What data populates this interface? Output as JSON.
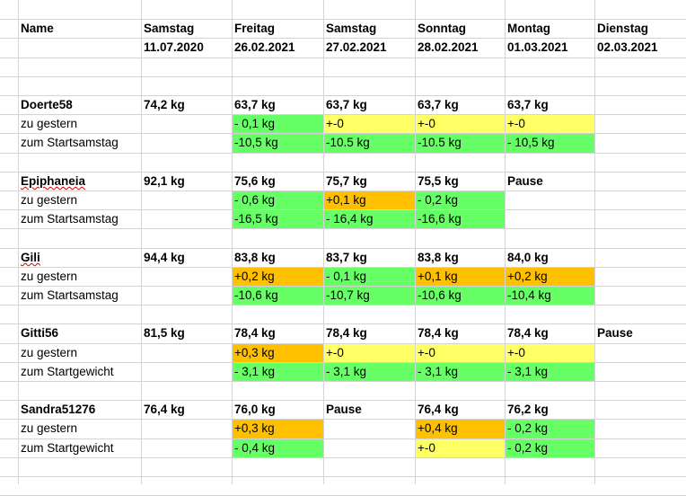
{
  "header": {
    "name": "Name",
    "columns": [
      {
        "day": "Samstag",
        "date": "11.07.2020"
      },
      {
        "day": "Freitag",
        "date": "26.02.2021"
      },
      {
        "day": "Samstag",
        "date": "27.02.2021"
      },
      {
        "day": "Sonntag",
        "date": "28.02.2021"
      },
      {
        "day": "Montag",
        "date": "01.03.2021"
      },
      {
        "day": "Dienstag",
        "date": "02.03.2021"
      }
    ]
  },
  "colors": {
    "green": "#66ff66",
    "yellow": "#ffff66",
    "orange": "#ffc000",
    "grid": "#d4d4d4"
  },
  "people": [
    {
      "name": "Doerte58",
      "start": "74,2 kg",
      "weights": [
        "63,7 kg",
        "63,7 kg",
        "63,7 kg",
        "63,7 kg",
        ""
      ],
      "row1_label": "zu gestern",
      "row1": [
        {
          "t": "- 0,1 kg",
          "c": "g"
        },
        {
          "t": "+-0",
          "c": "y"
        },
        {
          "t": "+-0",
          "c": "y"
        },
        {
          "t": "+-0",
          "c": "y"
        },
        {
          "t": "",
          "c": ""
        }
      ],
      "row2_label": "zum Startsamstag",
      "row2": [
        {
          "t": "-10,5 kg",
          "c": "g"
        },
        {
          "t": "-10.5 kg",
          "c": "g"
        },
        {
          "t": "-10.5 kg",
          "c": "g"
        },
        {
          "t": "- 10,5 kg",
          "c": "g"
        },
        {
          "t": "",
          "c": ""
        }
      ]
    },
    {
      "name": "Epiphaneia",
      "start": "92,1 kg",
      "weights": [
        "75,6 kg",
        "75,7 kg",
        "75,5 kg",
        "Pause",
        ""
      ],
      "row1_label": "zu gestern",
      "row1": [
        {
          "t": "- 0,6 kg",
          "c": "g"
        },
        {
          "t": "+0,1 kg",
          "c": "o"
        },
        {
          "t": "- 0,2 kg",
          "c": "g"
        },
        {
          "t": "",
          "c": ""
        },
        {
          "t": "",
          "c": ""
        }
      ],
      "row2_label": "zum Startsamstag",
      "row2": [
        {
          "t": "-16,5 kg",
          "c": "g"
        },
        {
          "t": "- 16,4 kg",
          "c": "g"
        },
        {
          "t": "-16,6 kg",
          "c": "g"
        },
        {
          "t": "",
          "c": ""
        },
        {
          "t": "",
          "c": ""
        }
      ]
    },
    {
      "name": "Gili",
      "start": "94,4 kg",
      "weights": [
        "83,8 kg",
        "83,7 kg",
        "83,8 kg",
        "84,0 kg",
        ""
      ],
      "row1_label": "zu gestern",
      "row1": [
        {
          "t": "+0,2 kg",
          "c": "o"
        },
        {
          "t": "- 0,1 kg",
          "c": "g"
        },
        {
          "t": "+0,1 kg",
          "c": "o"
        },
        {
          "t": "+0,2 kg",
          "c": "o"
        },
        {
          "t": "",
          "c": ""
        }
      ],
      "row2_label": "zum Startsamstag",
      "row2": [
        {
          "t": "-10,6 kg",
          "c": "g"
        },
        {
          "t": "-10,7 kg",
          "c": "g"
        },
        {
          "t": "-10,6 kg",
          "c": "g"
        },
        {
          "t": "-10,4 kg",
          "c": "g"
        },
        {
          "t": "",
          "c": ""
        }
      ]
    },
    {
      "name": "Gitti56",
      "start": "81,5 kg",
      "weights": [
        "78,4 kg",
        "78,4 kg",
        "78,4 kg",
        "78,4 kg",
        "Pause"
      ],
      "row1_label": "zu gestern",
      "row1": [
        {
          "t": "+0,3 kg",
          "c": "o"
        },
        {
          "t": "+-0",
          "c": "y"
        },
        {
          "t": "+-0",
          "c": "y"
        },
        {
          "t": "+-0",
          "c": "y"
        },
        {
          "t": "",
          "c": ""
        }
      ],
      "row2_label": "zum Startgewicht",
      "row2": [
        {
          "t": "- 3,1 kg",
          "c": "g"
        },
        {
          "t": "- 3,1 kg",
          "c": "g"
        },
        {
          "t": "- 3,1 kg",
          "c": "g"
        },
        {
          "t": "- 3,1 kg",
          "c": "g"
        },
        {
          "t": "",
          "c": ""
        }
      ]
    },
    {
      "name": "Sandra51276",
      "start": "76,4 kg",
      "weights": [
        "76,0 kg",
        "Pause",
        "76,4 kg",
        "76,2 kg",
        ""
      ],
      "row1_label": "zu gestern",
      "row1": [
        {
          "t": "+0,3 kg",
          "c": "o"
        },
        {
          "t": "",
          "c": ""
        },
        {
          "t": "+0,4 kg",
          "c": "o"
        },
        {
          "t": "- 0,2 kg",
          "c": "g"
        },
        {
          "t": "",
          "c": ""
        }
      ],
      "row2_label": "zum Startgewicht",
      "row2": [
        {
          "t": "- 0,4 kg",
          "c": "g"
        },
        {
          "t": "",
          "c": ""
        },
        {
          "t": "+-0",
          "c": "y"
        },
        {
          "t": "- 0,2 kg",
          "c": "g"
        },
        {
          "t": "",
          "c": ""
        }
      ]
    }
  ]
}
